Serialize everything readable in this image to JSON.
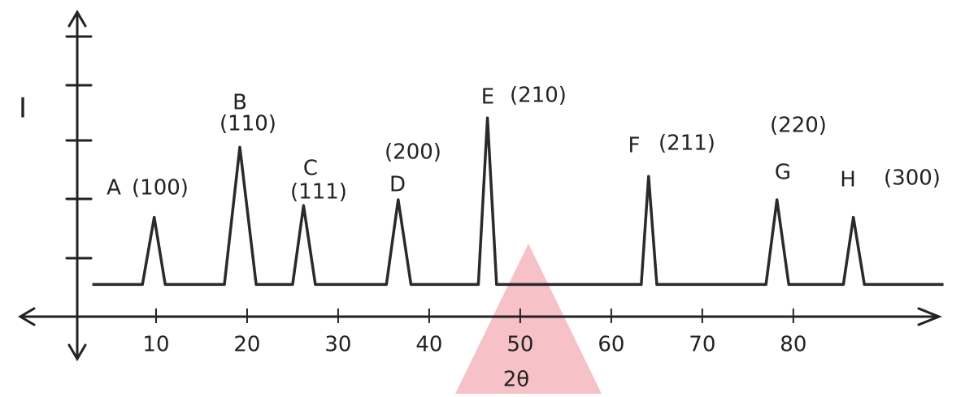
{
  "chart_data": {
    "type": "line",
    "x_label": "2θ",
    "y_label": "I",
    "xlim": [
      -5,
      96
    ],
    "ylim": [
      0,
      5
    ],
    "xticks": [
      10,
      20,
      30,
      40,
      50,
      60,
      70,
      80
    ],
    "grid": false,
    "color": "#2a2a2a",
    "x": [
      3,
      8.5,
      9.8,
      11,
      17.5,
      19.2,
      21,
      25,
      26.2,
      27.5,
      35.3,
      36.6,
      38,
      45.4,
      46.4,
      47.4,
      63.3,
      64.1,
      65,
      77,
      78.2,
      79.5,
      85.5,
      86.6,
      87.8,
      96.5
    ],
    "values": [
      0.55,
      0.55,
      1.7,
      0.55,
      0.55,
      2.9,
      0.55,
      0.55,
      1.9,
      0.55,
      0.55,
      2.0,
      0.55,
      0.55,
      3.4,
      0.55,
      0.55,
      2.4,
      0.55,
      0.55,
      2.0,
      0.55,
      0.55,
      1.7,
      0.55,
      0.55
    ],
    "annotations": [
      {
        "letter": "A",
        "hkl": "(100)"
      },
      {
        "letter": "B",
        "hkl": "(110)"
      },
      {
        "letter": "C",
        "hkl": "(111)"
      },
      {
        "letter": "D",
        "hkl": "(200)"
      },
      {
        "letter": "E",
        "hkl": "(210)"
      },
      {
        "letter": "F",
        "hkl": "(211)"
      },
      {
        "letter": "G",
        "hkl": "(220)"
      },
      {
        "letter": "H",
        "hkl": "(300)"
      }
    ]
  }
}
